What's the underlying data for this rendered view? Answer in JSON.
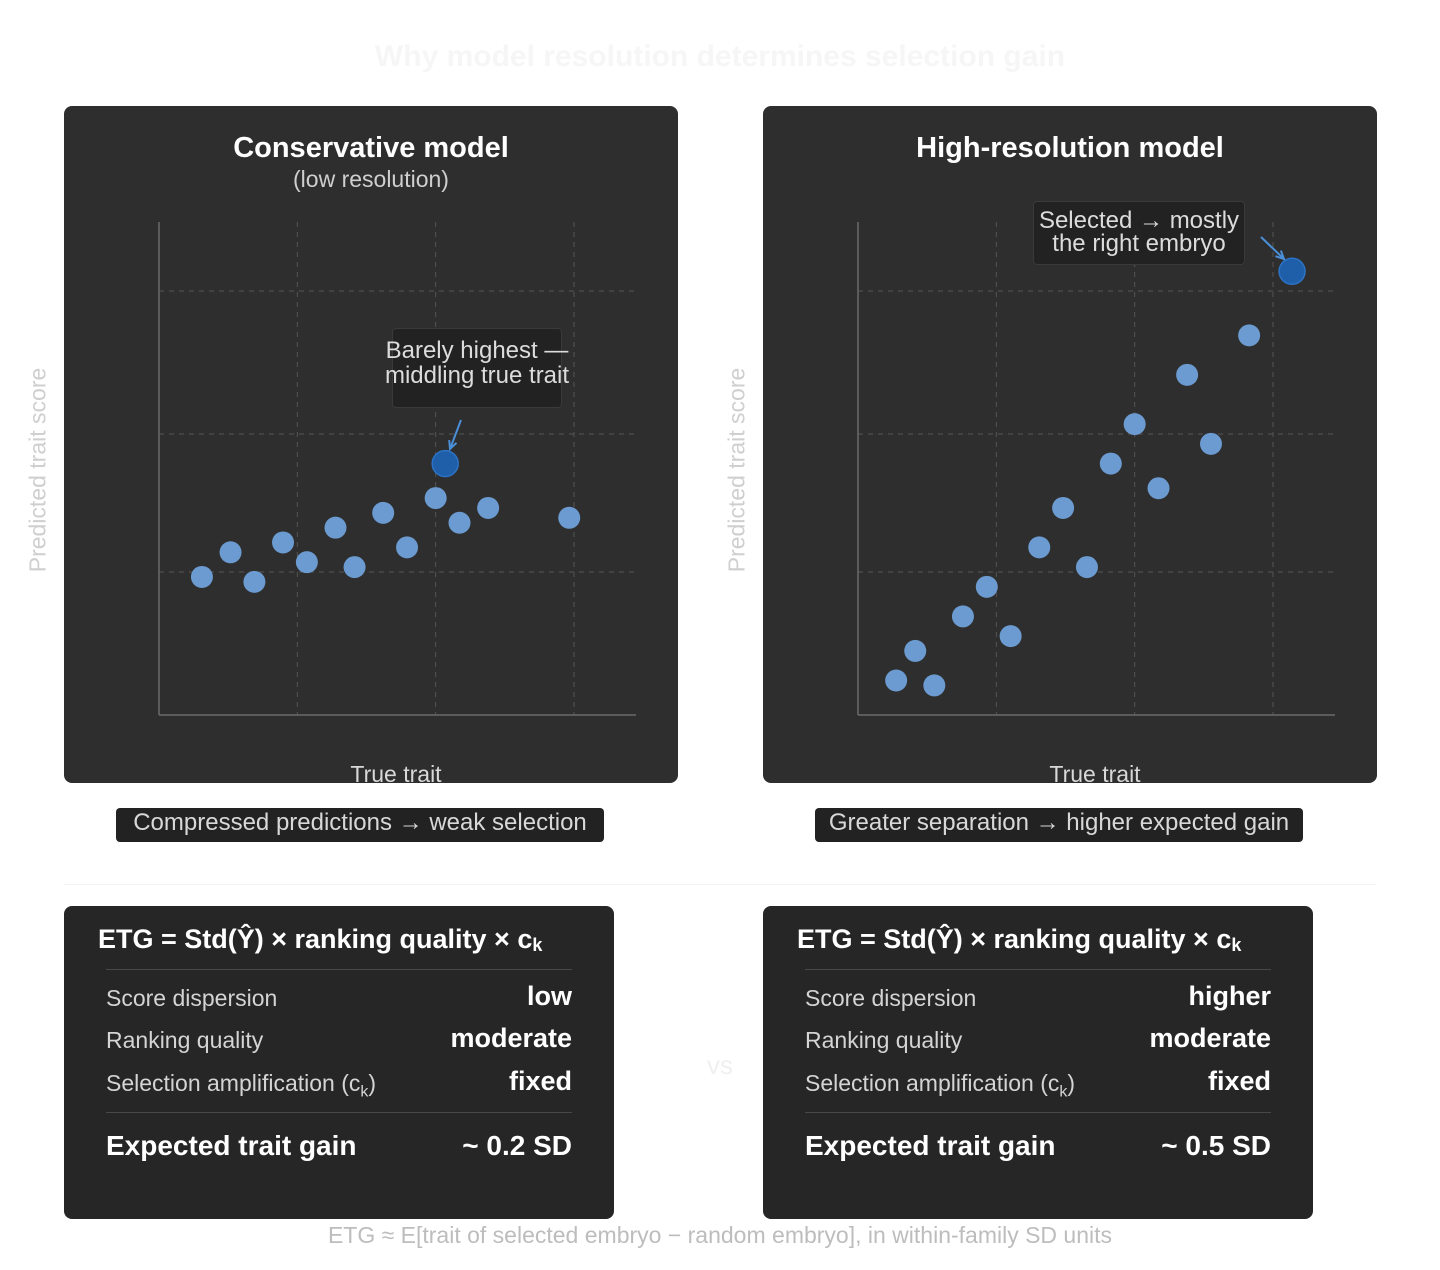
{
  "title": "Why model resolution determines selection gain",
  "colors": {
    "panel_bg": "#2e2e2e",
    "point": "#6b9bd1",
    "selected_point": "#1f5ea8",
    "arrow": "#4a8fd8",
    "grid": "#555555"
  },
  "panels": [
    {
      "title": "Conservative model",
      "subtitle": "(low resolution)",
      "ylabel": "Predicted trait score",
      "xlabel": "True trait",
      "annotation_line1": "Barely highest —",
      "annotation_line2": "middling true trait",
      "caption": "Compressed predictions → weak selection"
    },
    {
      "title": "High-resolution model",
      "subtitle": "",
      "ylabel": "Predicted trait score",
      "xlabel": "True trait",
      "annotation_line1": "Selected → mostly",
      "annotation_line2": "the right embryo",
      "caption": "Greater separation → higher expected gain"
    }
  ],
  "chart_data": [
    {
      "type": "scatter",
      "title": "Conservative model",
      "subtitle": "(low resolution)",
      "xlabel": "True trait",
      "ylabel": "Predicted trait score",
      "xlim": [
        0,
        1
      ],
      "ylim": [
        0,
        1
      ],
      "grid": true,
      "points": [
        {
          "x": 0.09,
          "y": 0.28
        },
        {
          "x": 0.15,
          "y": 0.33
        },
        {
          "x": 0.2,
          "y": 0.27
        },
        {
          "x": 0.26,
          "y": 0.35
        },
        {
          "x": 0.31,
          "y": 0.31
        },
        {
          "x": 0.37,
          "y": 0.38
        },
        {
          "x": 0.41,
          "y": 0.3
        },
        {
          "x": 0.47,
          "y": 0.41
        },
        {
          "x": 0.52,
          "y": 0.34
        },
        {
          "x": 0.58,
          "y": 0.44
        },
        {
          "x": 0.63,
          "y": 0.39
        },
        {
          "x": 0.69,
          "y": 0.42
        },
        {
          "x": 0.86,
          "y": 0.4
        }
      ],
      "selected": {
        "x": 0.6,
        "y": 0.51
      }
    },
    {
      "type": "scatter",
      "title": "High-resolution model",
      "xlabel": "True trait",
      "ylabel": "Predicted trait score",
      "xlim": [
        0,
        1
      ],
      "ylim": [
        0,
        1
      ],
      "grid": true,
      "points": [
        {
          "x": 0.08,
          "y": 0.07
        },
        {
          "x": 0.12,
          "y": 0.13
        },
        {
          "x": 0.16,
          "y": 0.06
        },
        {
          "x": 0.22,
          "y": 0.2
        },
        {
          "x": 0.27,
          "y": 0.26
        },
        {
          "x": 0.32,
          "y": 0.16
        },
        {
          "x": 0.38,
          "y": 0.34
        },
        {
          "x": 0.43,
          "y": 0.42
        },
        {
          "x": 0.48,
          "y": 0.3
        },
        {
          "x": 0.53,
          "y": 0.51
        },
        {
          "x": 0.58,
          "y": 0.59
        },
        {
          "x": 0.63,
          "y": 0.46
        },
        {
          "x": 0.69,
          "y": 0.69
        },
        {
          "x": 0.74,
          "y": 0.55
        },
        {
          "x": 0.82,
          "y": 0.77
        }
      ],
      "selected": {
        "x": 0.91,
        "y": 0.9
      }
    }
  ],
  "cards": [
    {
      "formula_main": "ETG = Std(Ŷ) × ranking quality × c",
      "formula_sub": "k",
      "rows": [
        {
          "label": "Score dispersion",
          "label_sub": "",
          "value": "low"
        },
        {
          "label": "Ranking quality",
          "label_sub": "",
          "value": "moderate"
        },
        {
          "label": "Selection amplification (c",
          "label_sub": "k",
          "label_end": ")",
          "value": "fixed"
        }
      ],
      "gain_label": "Expected trait gain",
      "gain_value": "~ 0.2 SD"
    },
    {
      "formula_main": "ETG = Std(Ŷ) × ranking quality × c",
      "formula_sub": "k",
      "rows": [
        {
          "label": "Score dispersion",
          "label_sub": "",
          "value": "higher"
        },
        {
          "label": "Ranking quality",
          "label_sub": "",
          "value": "moderate"
        },
        {
          "label": "Selection amplification (c",
          "label_sub": "k",
          "label_end": ")",
          "value": "fixed"
        }
      ],
      "gain_label": "Expected trait gain",
      "gain_value": "~ 0.5 SD"
    }
  ],
  "vs_label": "vs",
  "footer": "ETG ≈ E[trait of selected embryo − random embryo], in within-family SD units"
}
